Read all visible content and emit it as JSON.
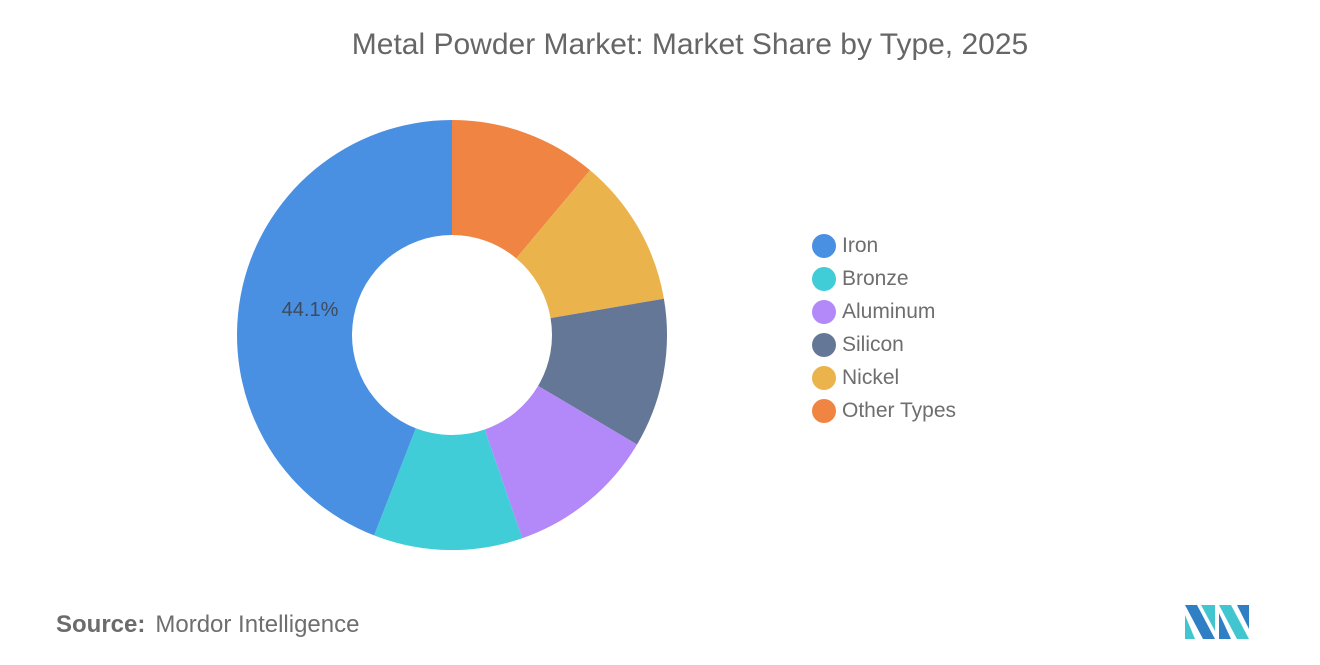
{
  "header": {
    "title": "Metal Powder Market: Market Share by Type, 2025"
  },
  "footer": {
    "source_label": "Source:",
    "source_value": "Mordor Intelligence",
    "logo_icon": "mordor-intelligence-logo-icon"
  },
  "legend": {
    "items": [
      {
        "label": "Iron",
        "color": "#4a90e2"
      },
      {
        "label": "Bronze",
        "color": "#41cdd8"
      },
      {
        "label": "Aluminum",
        "color": "#b388f9"
      },
      {
        "label": "Silicon",
        "color": "#657797"
      },
      {
        "label": "Nickel",
        "color": "#ebb34b"
      },
      {
        "label": "Other Types",
        "color": "#f08442"
      }
    ]
  },
  "chart_data": {
    "type": "pie",
    "subtype": "donut",
    "title": "Metal Powder Market: Market Share by Type, 2025",
    "categories": [
      "Iron",
      "Bronze",
      "Aluminum",
      "Silicon",
      "Nickel",
      "Other Types"
    ],
    "values": [
      44.1,
      11.2,
      11.2,
      11.2,
      11.2,
      11.1
    ],
    "unit": "%",
    "colors": [
      "#4a90e2",
      "#41cdd8",
      "#b388f9",
      "#657797",
      "#ebb34b",
      "#f08442"
    ],
    "data_labels": [
      {
        "category": "Iron",
        "text": "44.1%"
      }
    ],
    "legend_position": "right",
    "draw_order_clockwise_from_top": [
      "Other Types",
      "Nickel",
      "Silicon",
      "Aluminum",
      "Bronze",
      "Iron"
    ],
    "source": "Mordor Intelligence"
  }
}
